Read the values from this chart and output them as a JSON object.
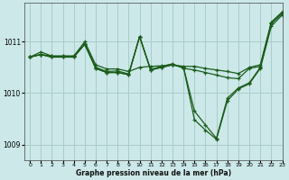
{
  "bg_color": "#cce8e8",
  "grid_color": "#aacccc",
  "line_color": "#1a5c1a",
  "xlabel": "Graphe pression niveau de la mer (hPa)",
  "ylim": [
    1008.7,
    1011.75
  ],
  "xlim": [
    -0.5,
    23
  ],
  "yticks": [
    1009,
    1010,
    1011
  ],
  "xticks": [
    0,
    1,
    2,
    3,
    4,
    5,
    6,
    7,
    8,
    9,
    10,
    11,
    12,
    13,
    14,
    15,
    16,
    17,
    18,
    19,
    20,
    21,
    22,
    23
  ],
  "series1_x": [
    0,
    1,
    2,
    3,
    4,
    5,
    6,
    7,
    8,
    9,
    10,
    11,
    12,
    13,
    14,
    15,
    16,
    17,
    18,
    19,
    20,
    21,
    22,
    23
  ],
  "series1_y": [
    1010.7,
    1010.8,
    1010.72,
    1010.72,
    1010.72,
    1011.0,
    1010.55,
    1010.47,
    1010.47,
    1010.42,
    1010.5,
    1010.52,
    1010.53,
    1010.55,
    1010.52,
    1010.52,
    1010.48,
    1010.45,
    1010.42,
    1010.38,
    1010.5,
    1010.55,
    1011.38,
    1011.58
  ],
  "series2_x": [
    0,
    1,
    2,
    3,
    4,
    5,
    6,
    7,
    8,
    9,
    10,
    11,
    12,
    13,
    14,
    15,
    16,
    17,
    18,
    19,
    20,
    21,
    22,
    23
  ],
  "series2_y": [
    1010.7,
    1010.75,
    1010.7,
    1010.7,
    1010.7,
    1010.95,
    1010.48,
    1010.4,
    1010.4,
    1010.36,
    1011.1,
    1010.45,
    1010.5,
    1010.55,
    1010.5,
    1009.65,
    1009.38,
    1009.12,
    1009.9,
    1010.1,
    1010.2,
    1010.5,
    1011.35,
    1011.55
  ],
  "series3_x": [
    0,
    1,
    2,
    3,
    4,
    5,
    6,
    7,
    8,
    9,
    10,
    11,
    12,
    13,
    14,
    15,
    16,
    17,
    18,
    19,
    20,
    21,
    22,
    23
  ],
  "series3_y": [
    1010.7,
    1010.75,
    1010.7,
    1010.7,
    1010.7,
    1010.95,
    1010.48,
    1010.4,
    1010.4,
    1010.36,
    1011.1,
    1010.45,
    1010.5,
    1010.55,
    1010.5,
    1009.48,
    1009.28,
    1009.1,
    1009.85,
    1010.08,
    1010.18,
    1010.48,
    1011.3,
    1011.52
  ],
  "series4_x": [
    0,
    1,
    2,
    3,
    4,
    5,
    6,
    7,
    8,
    9,
    10,
    11,
    12,
    13,
    14,
    15,
    16,
    17,
    18,
    19,
    20,
    21,
    22,
    23
  ],
  "series4_y": [
    1010.7,
    1010.75,
    1010.72,
    1010.72,
    1010.72,
    1010.95,
    1010.5,
    1010.42,
    1010.43,
    1010.37,
    1011.1,
    1010.46,
    1010.52,
    1010.57,
    1010.48,
    1010.45,
    1010.4,
    1010.35,
    1010.3,
    1010.28,
    1010.48,
    1010.52,
    1011.36,
    1011.56
  ]
}
